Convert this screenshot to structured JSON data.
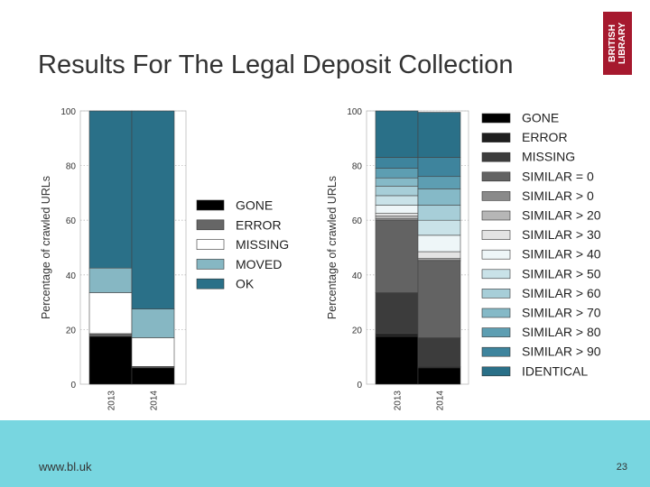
{
  "slide": {
    "title": "Results For The Legal Deposit Collection",
    "logo_line1": "BRITISH",
    "logo_line2": "LIBRARY",
    "footer_url": "www.bl.uk",
    "page_number": "23"
  },
  "colors": {
    "logo": "#a6192e",
    "footer": "#78d6e0"
  },
  "chart_data": [
    {
      "type": "bar",
      "stacked": true,
      "categories": [
        "2013",
        "2014"
      ],
      "ylabel": "Percentage of crawled URLs",
      "ylim": [
        0,
        100
      ],
      "yticks": [
        0,
        20,
        40,
        60,
        80,
        100
      ],
      "grid": true,
      "legend_position": "right",
      "series": [
        {
          "name": "GONE",
          "color": "#000000",
          "values": [
            17.5,
            6
          ]
        },
        {
          "name": "ERROR",
          "color": "#666666",
          "values": [
            1,
            0.5
          ]
        },
        {
          "name": "MISSING",
          "color": "#ffffff",
          "values": [
            15,
            10.5
          ]
        },
        {
          "name": "MOVED",
          "color": "#86b7c3",
          "values": [
            9,
            10.5
          ]
        },
        {
          "name": "OK",
          "color": "#2a7088",
          "values": [
            57.5,
            72.5
          ]
        }
      ]
    },
    {
      "type": "bar",
      "stacked": true,
      "categories": [
        "2013",
        "2014"
      ],
      "ylabel": "Percentage of crawled URLs",
      "ylim": [
        0,
        100
      ],
      "yticks": [
        0,
        20,
        40,
        60,
        80,
        100
      ],
      "grid": true,
      "legend_position": "right",
      "series": [
        {
          "name": "GONE",
          "color": "#000000",
          "values": [
            17.5,
            6
          ]
        },
        {
          "name": "ERROR",
          "color": "#1e1e1e",
          "values": [
            1,
            0.5
          ]
        },
        {
          "name": "MISSING",
          "color": "#3c3c3c",
          "values": [
            15,
            10.5
          ]
        },
        {
          "name": "SIMILAR = 0",
          "color": "#636363",
          "values": [
            26.5,
            28
          ]
        },
        {
          "name": "SIMILAR > 0",
          "color": "#8a8a8a",
          "values": [
            0.5,
            0.5
          ]
        },
        {
          "name": "SIMILAR > 20",
          "color": "#b6b6b6",
          "values": [
            1,
            0.5
          ]
        },
        {
          "name": "SIMILAR > 30",
          "color": "#e3e3e3",
          "values": [
            1,
            2.5
          ]
        },
        {
          "name": "SIMILAR > 40",
          "color": "#eef6f8",
          "values": [
            3,
            6
          ]
        },
        {
          "name": "SIMILAR > 50",
          "color": "#c9e2e8",
          "values": [
            3.5,
            5.5
          ]
        },
        {
          "name": "SIMILAR > 60",
          "color": "#a7ced8",
          "values": [
            3.5,
            5.5
          ]
        },
        {
          "name": "SIMILAR > 70",
          "color": "#85b9c7",
          "values": [
            3,
            6
          ]
        },
        {
          "name": "SIMILAR > 80",
          "color": "#5d9eb2",
          "values": [
            3.5,
            4.5
          ]
        },
        {
          "name": "SIMILAR > 90",
          "color": "#3e849d",
          "values": [
            4,
            7
          ]
        },
        {
          "name": "IDENTICAL",
          "color": "#2a7088",
          "values": [
            17,
            16.5
          ]
        }
      ]
    }
  ]
}
